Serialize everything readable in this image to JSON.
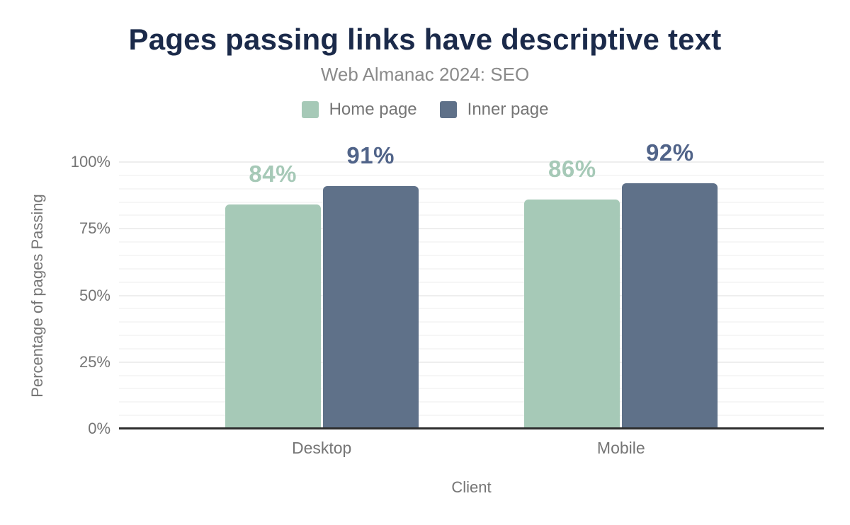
{
  "chart_data": {
    "type": "bar",
    "title": "Pages passing links have descriptive text",
    "subtitle": "Web Almanac 2024: SEO",
    "xlabel": "Client",
    "ylabel": "Percentage of pages Passing",
    "categories": [
      "Desktop",
      "Mobile"
    ],
    "series": [
      {
        "name": "Home page",
        "color": "#a6c9b7",
        "label_color": "#a6c9b7",
        "values": [
          84,
          86
        ]
      },
      {
        "name": "Inner page",
        "color": "#5f7189",
        "label_color": "#516489",
        "values": [
          91,
          92
        ]
      }
    ],
    "value_suffix": "%",
    "ylim": [
      0,
      100
    ],
    "yticks": [
      0,
      25,
      50,
      75,
      100
    ],
    "ytick_labels": [
      "0%",
      "25%",
      "50%",
      "75%",
      "100%"
    ],
    "grid": "horizontal minor lines every 5%, major lines every 25%",
    "legend_position": "top center",
    "colors": {
      "background": "#ffffff",
      "title_color": "#1b2a4a",
      "subtitle_color": "#8a8a8a",
      "text_gray": "#757575",
      "axis_color": "#2d2d2d",
      "grid_minor": "#f6f6f6",
      "grid_major": "#eeeeee"
    }
  }
}
